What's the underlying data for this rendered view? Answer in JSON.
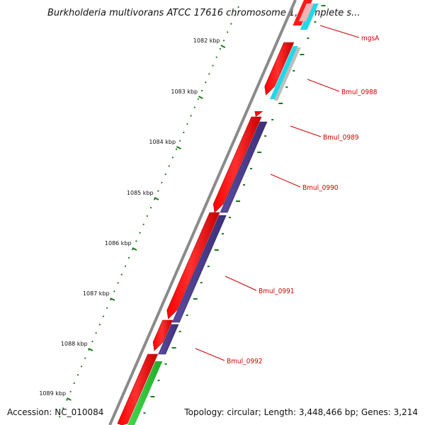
{
  "title": "Burkholderia multivorans ATCC 17616 chromosome 1, complete s...",
  "accession": "Accession: NC_010084",
  "stats": "Topology: circular; Length: 3,448,466 bp; Genes: 3,214",
  "scale_labels": [
    "1082 kbp",
    "1083 kbp",
    "1084 kbp",
    "1085 kbp",
    "1086 kbp",
    "1087 kbp",
    "1088 kbp",
    "1089 kbp"
  ],
  "gene_labels": [
    "mgsA",
    "Bmul_0988",
    "Bmul_0989",
    "Bmul_0990",
    "Bmul_0991",
    "Bmul_0992"
  ],
  "colors": {
    "forward_cds": "#ff0000",
    "reverse_cds": "#4b3d8f",
    "cyan_feature": "#22d8e8",
    "pink_feature": "#f7b3b3",
    "gray_feature": "#bdbdbd",
    "green_feature": "#33c33a",
    "backbone": "#8a8a8a",
    "tick_green": "#1a7a1a",
    "label_red": "#cc0000"
  }
}
